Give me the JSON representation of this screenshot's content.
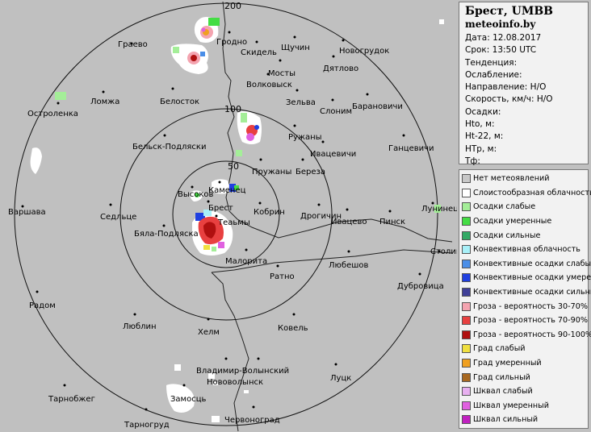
{
  "map": {
    "ring_labels": [
      "200",
      "100",
      "50"
    ],
    "cities": [
      {
        "name": "Гродно"
      },
      {
        "name": "Скидель"
      },
      {
        "name": "Щучин"
      },
      {
        "name": "Новогрудок"
      },
      {
        "name": "Граево"
      },
      {
        "name": "Дятлово"
      },
      {
        "name": "Мосты"
      },
      {
        "name": "Волковыск"
      },
      {
        "name": "Ломжа"
      },
      {
        "name": "Белосток"
      },
      {
        "name": "Зельва"
      },
      {
        "name": "Слоним"
      },
      {
        "name": "Барановичи"
      },
      {
        "name": "Остроленка"
      },
      {
        "name": "Ружаны"
      },
      {
        "name": "Ивацевичи"
      },
      {
        "name": "Ганцевичи"
      },
      {
        "name": "Бельск-Подляски"
      },
      {
        "name": "Пружаны"
      },
      {
        "name": "Береза"
      },
      {
        "name": "Каменец"
      },
      {
        "name": "Высоков"
      },
      {
        "name": "Брест"
      },
      {
        "name": "Кобрин"
      },
      {
        "name": "Дрогичин"
      },
      {
        "name": "Варшава"
      },
      {
        "name": "Седльце"
      },
      {
        "name": "Ивацево"
      },
      {
        "name": "Пинск"
      },
      {
        "name": "Лунинец"
      },
      {
        "name": "Теаьмы"
      },
      {
        "name": "Бяла-Подляска"
      },
      {
        "name": "Столин"
      },
      {
        "name": "Малорита"
      },
      {
        "name": "Любешов"
      },
      {
        "name": "Ратно"
      },
      {
        "name": "Дубровица"
      },
      {
        "name": "Радом"
      },
      {
        "name": "Люблин"
      },
      {
        "name": "Хелм"
      },
      {
        "name": "Ковель"
      },
      {
        "name": "Владимир-Волынский"
      },
      {
        "name": "Нововолынск"
      },
      {
        "name": "Луцк"
      },
      {
        "name": "Замосць"
      },
      {
        "name": "Тарнобжег"
      },
      {
        "name": "Тарногруд"
      },
      {
        "name": "Червоноград"
      }
    ]
  },
  "info": {
    "station": "Брест, UMBB",
    "site": "meteoinfo.by",
    "rows": [
      "Дата: 12.08.2017",
      "Срок: 13:50 UTC",
      "Тенденция:",
      "Ослабление:",
      "Направление: Н/О",
      "Скорость, км/ч: Н/О",
      "Осадки:",
      "Hto, м:",
      "Ht-22, м:",
      "HTp, м:",
      "Тф:"
    ]
  },
  "legend": [
    {
      "label": "Нет метеоявлений",
      "color": "#c8c8c8"
    },
    {
      "label": "Слоистообразная облачность",
      "color": "#ffffff"
    },
    {
      "label": "Осадки слабые",
      "color": "#a4ee98"
    },
    {
      "label": "Осадки умеренные",
      "color": "#44dd44"
    },
    {
      "label": "Осадки сильные",
      "color": "#33aa66"
    },
    {
      "label": "Конвективная облачность",
      "color": "#a8f0f8"
    },
    {
      "label": "Конвективные осадки слабые",
      "color": "#4a8ee8"
    },
    {
      "label": "Конвективные осадки умерен.",
      "color": "#2040e0"
    },
    {
      "label": "Конвективные осадки сильные",
      "color": "#404098"
    },
    {
      "label": "Гроза - вероятность 30-70%",
      "color": "#f4a4b0"
    },
    {
      "label": "Гроза - вероятность 70-90%",
      "color": "#e84040"
    },
    {
      "label": "Гроза - вероятность 90-100%",
      "color": "#b01010"
    },
    {
      "label": "Град слабый",
      "color": "#f0e040"
    },
    {
      "label": "Град умеренный",
      "color": "#f0a020"
    },
    {
      "label": "Град сильный",
      "color": "#a86820"
    },
    {
      "label": "Шквал слабый",
      "color": "#e8b0f0"
    },
    {
      "label": "Шквал умеренный",
      "color": "#e060e0"
    },
    {
      "label": "Шквал сильный",
      "color": "#c020c0"
    }
  ]
}
